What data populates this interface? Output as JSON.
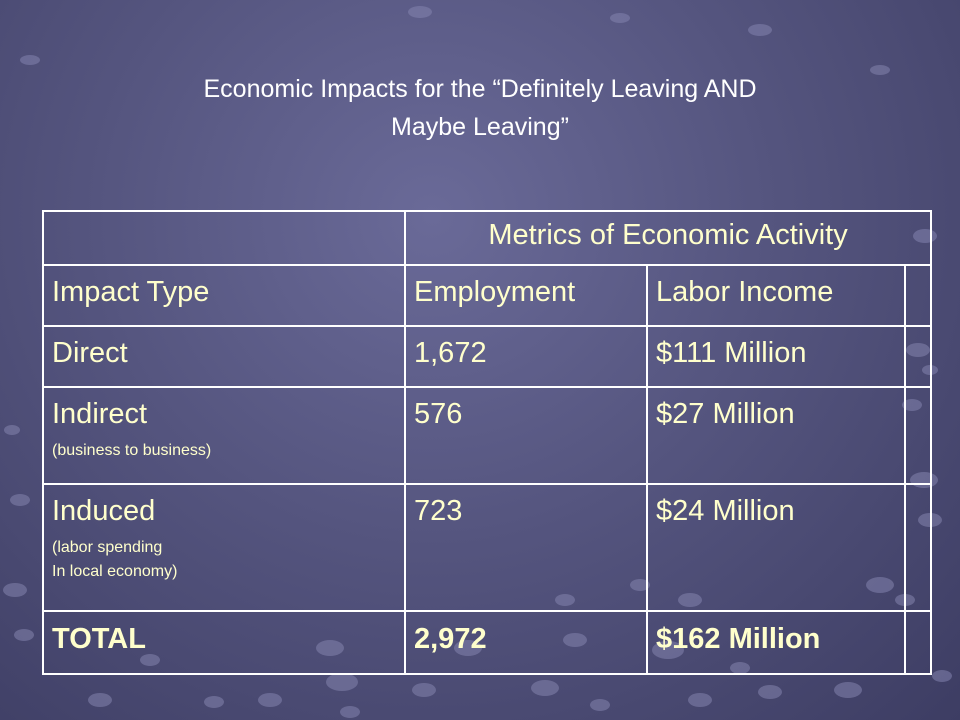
{
  "title": {
    "line1": "Economic Impacts for the “Definitely Leaving AND",
    "line2": "Maybe Leaving”"
  },
  "table": {
    "header_group": "Metrics of Economic Activity",
    "columns": [
      "Impact Type",
      "Employment",
      "Labor Income"
    ],
    "rows": [
      {
        "type": "Direct",
        "notes": [],
        "employment": "1,672",
        "income": "$111 Million"
      },
      {
        "type": "Indirect",
        "notes": [
          "(business to business)"
        ],
        "employment": "576",
        "income": "$27 Million"
      },
      {
        "type": "Induced",
        "notes": [
          "(labor spending",
          "In local economy)"
        ],
        "employment": "723",
        "income": "$24 Million"
      }
    ],
    "total": {
      "type": "TOTAL",
      "employment": "2,972",
      "income": "$162 Million"
    }
  },
  "colors": {
    "background": "#55557f",
    "table_text": "#ffffcc",
    "title_text": "#ffffff",
    "border": "#ffffff"
  }
}
